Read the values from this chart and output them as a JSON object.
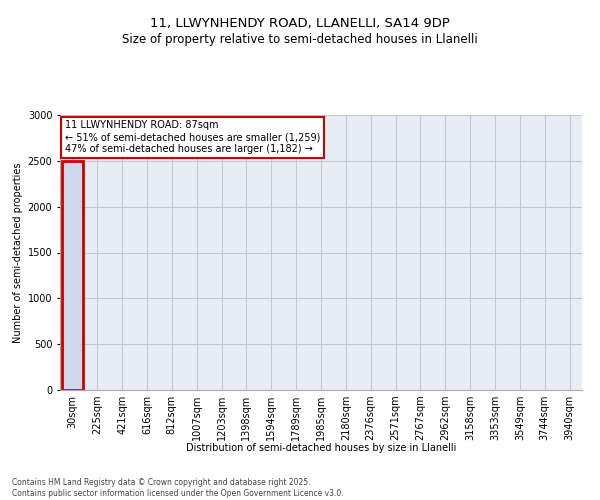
{
  "title": "11, LLWYNHENDY ROAD, LLANELLI, SA14 9DP",
  "subtitle": "Size of property relative to semi-detached houses in Llanelli",
  "xlabel": "Distribution of semi-detached houses by size in Llanelli",
  "ylabel": "Number of semi-detached properties",
  "footnote": "Contains HM Land Registry data © Crown copyright and database right 2025.\nContains public sector information licensed under the Open Government Licence v3.0.",
  "annotation_title": "11 LLWYNHENDY ROAD: 87sqm",
  "annotation_line2": "← 51% of semi-detached houses are smaller (1,259)",
  "annotation_line3": "47% of semi-detached houses are larger (1,182) →",
  "property_sqm": 87,
  "bar_labels": [
    "30sqm",
    "225sqm",
    "421sqm",
    "616sqm",
    "812sqm",
    "1007sqm",
    "1203sqm",
    "1398sqm",
    "1594sqm",
    "1789sqm",
    "1985sqm",
    "2180sqm",
    "2376sqm",
    "2571sqm",
    "2767sqm",
    "2962sqm",
    "3158sqm",
    "3353sqm",
    "3549sqm",
    "3744sqm",
    "3940sqm"
  ],
  "bar_values": [
    2500,
    2,
    1,
    0,
    0,
    0,
    0,
    0,
    0,
    0,
    0,
    0,
    0,
    0,
    0,
    0,
    0,
    0,
    0,
    0,
    0
  ],
  "highlight_bar_index": 0,
  "bar_color": "#cdd8e8",
  "highlight_outline_color": "#cc0000",
  "grid_color": "#c0c8d8",
  "bg_color": "#e8edf5",
  "ylim": [
    0,
    3000
  ],
  "yticks": [
    0,
    500,
    1000,
    1500,
    2000,
    2500,
    3000
  ],
  "title_fontsize": 9.5,
  "subtitle_fontsize": 8.5,
  "axis_label_fontsize": 7,
  "tick_fontsize": 7,
  "annot_fontsize": 7,
  "footnote_fontsize": 5.5
}
